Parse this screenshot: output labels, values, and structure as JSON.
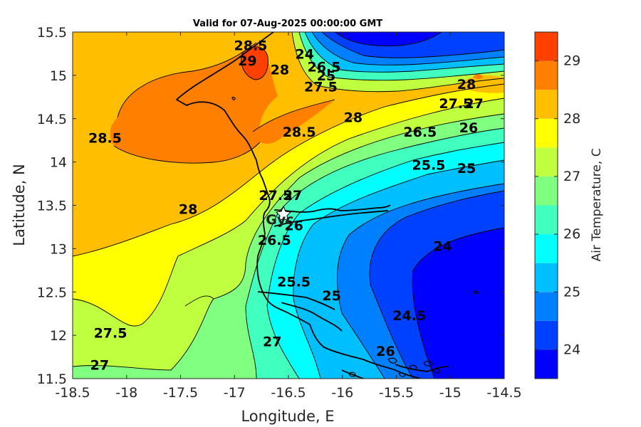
{
  "chart_data": {
    "type": "heatmap",
    "title": "Valid for 07-Aug-2025 00:00:00 GMT",
    "xlabel": "Longitude, E",
    "ylabel": "Latitude, N",
    "xlim": [
      -18.5,
      -14.5
    ],
    "ylim": [
      11.5,
      15.5
    ],
    "xticks": [
      "-18.5",
      "-18",
      "-17.5",
      "-17",
      "-16.5",
      "-16",
      "-15.5",
      "-15",
      "-14.5"
    ],
    "yticks": [
      "15.5",
      "15",
      "14.5",
      "14",
      "13.5",
      "13",
      "12.5",
      "12",
      "11.5"
    ],
    "colorbar": {
      "label": "Air Temperature, C",
      "ticks": [
        "29",
        "28",
        "27",
        "26",
        "25",
        "24"
      ],
      "range": [
        23.5,
        29.5
      ],
      "levels": [
        23.5,
        24,
        24.5,
        25,
        25.5,
        26,
        26.5,
        27,
        27.5,
        28,
        28.5,
        29,
        29.5
      ],
      "colors": [
        "#0000FF",
        "#0040FF",
        "#0080FF",
        "#00BFFF",
        "#00FFFF",
        "#40FFBF",
        "#80FF80",
        "#BFFF40",
        "#FFFF00",
        "#FFBF00",
        "#FF8000",
        "#FF4000",
        "#FF0000"
      ]
    },
    "contour_labels": [
      {
        "text": "28.5",
        "lon": -16.85,
        "lat": 15.35
      },
      {
        "text": "29",
        "lon": -16.88,
        "lat": 15.17
      },
      {
        "text": "28",
        "lon": -16.58,
        "lat": 15.07
      },
      {
        "text": "28.5",
        "lon": -18.2,
        "lat": 14.28
      },
      {
        "text": "28.5",
        "lon": -16.4,
        "lat": 14.35
      },
      {
        "text": "28",
        "lon": -15.9,
        "lat": 14.52
      },
      {
        "text": "27.5",
        "lon": -14.95,
        "lat": 14.68
      },
      {
        "text": "27",
        "lon": -14.78,
        "lat": 14.68
      },
      {
        "text": "28",
        "lon": -14.85,
        "lat": 14.9
      },
      {
        "text": "26.5",
        "lon": -15.28,
        "lat": 14.35
      },
      {
        "text": "26",
        "lon": -14.83,
        "lat": 14.4
      },
      {
        "text": "25.5",
        "lon": -15.2,
        "lat": 13.97
      },
      {
        "text": "25",
        "lon": -14.85,
        "lat": 13.93
      },
      {
        "text": "28",
        "lon": -17.43,
        "lat": 13.46
      },
      {
        "text": "27.5",
        "lon": -16.62,
        "lat": 13.62
      },
      {
        "text": "27",
        "lon": -16.46,
        "lat": 13.62
      },
      {
        "text": "26",
        "lon": -16.45,
        "lat": 13.27
      },
      {
        "text": "26.5",
        "lon": -16.63,
        "lat": 13.1
      },
      {
        "text": "25.5",
        "lon": -16.45,
        "lat": 12.62
      },
      {
        "text": "25",
        "lon": -16.1,
        "lat": 12.46
      },
      {
        "text": "24",
        "lon": -15.07,
        "lat": 13.03
      },
      {
        "text": "24.5",
        "lon": -15.38,
        "lat": 12.23
      },
      {
        "text": "26",
        "lon": -15.6,
        "lat": 11.82
      },
      {
        "text": "27",
        "lon": -16.65,
        "lat": 11.93
      },
      {
        "text": "27.5",
        "lon": -18.15,
        "lat": 12.03
      },
      {
        "text": "27",
        "lon": -18.25,
        "lat": 11.66
      },
      {
        "text": "26.5",
        "lon": -16.17,
        "lat": 15.1
      },
      {
        "text": "27.5",
        "lon": -16.2,
        "lat": 14.87
      },
      {
        "text": "25",
        "lon": -16.15,
        "lat": 15.0
      },
      {
        "text": "24",
        "lon": -16.35,
        "lat": 15.25
      }
    ],
    "place_labels": [
      {
        "text": "Gyc",
        "lon": -16.58,
        "lat": 13.34
      }
    ]
  }
}
